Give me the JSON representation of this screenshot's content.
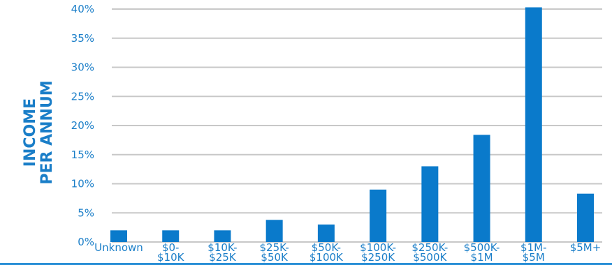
{
  "chart_data": {
    "type": "bar",
    "ylabel": [
      "INCOME",
      "PER ANNUM"
    ],
    "categories": [
      [
        "Unknown"
      ],
      [
        "$0-",
        "$10K"
      ],
      [
        "$10K-",
        "$25K"
      ],
      [
        "$25K-",
        "$50K"
      ],
      [
        "$50K-",
        "$100K"
      ],
      [
        "$100K-",
        "$250K"
      ],
      [
        "$250K-",
        "$500K"
      ],
      [
        "$500K-",
        "$1M"
      ],
      [
        "$1M-",
        "$5M"
      ],
      [
        "$5M+"
      ]
    ],
    "values": [
      2,
      2,
      2,
      3.8,
      3,
      9,
      13,
      18.4,
      40.3,
      8.3
    ],
    "yticks": [
      "0%",
      "5%",
      "10%",
      "15%",
      "20%",
      "25%",
      "30%",
      "35%",
      "40%"
    ],
    "ylim": [
      0,
      40
    ],
    "grid": true,
    "colors": {
      "bar": "#0a7acb",
      "grid": "#c8c8c8",
      "text": "#1a7ec8"
    }
  }
}
